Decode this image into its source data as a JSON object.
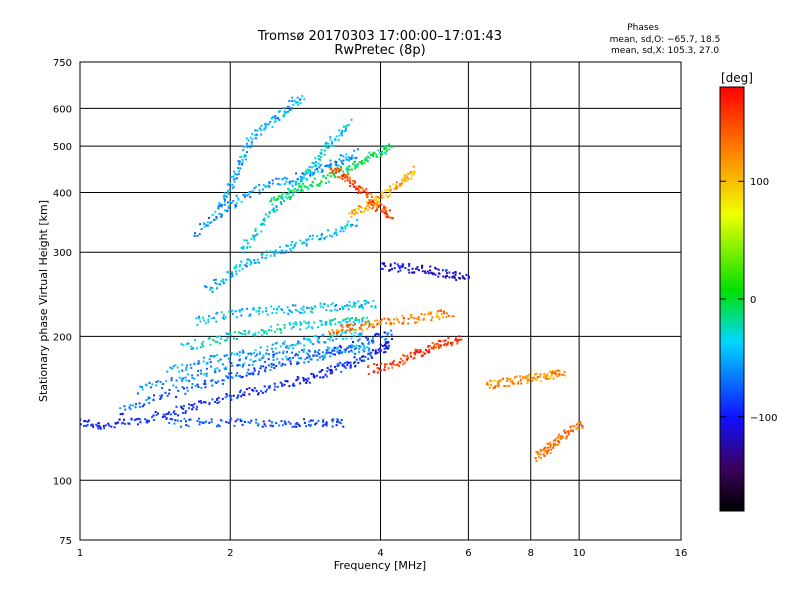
{
  "chart_data": {
    "type": "scatter",
    "title": "Tromsø 20170303 17:00:00–17:01:43",
    "subtitle": "RwPretec (8p)",
    "stats": {
      "heading": "Phases",
      "line_o": "mean, sd,O: −65.7, 18.5",
      "line_x": "mean, sd,X: 105.3, 27.0"
    },
    "xlabel": "Frequency [MHz]",
    "ylabel": "Stationary phase Virtual Height [km]",
    "x_scale": "log",
    "y_scale": "log",
    "xlim": [
      1,
      16
    ],
    "ylim": [
      75,
      750
    ],
    "x_ticks": [
      1,
      2,
      4,
      6,
      8,
      10,
      16
    ],
    "x_tick_labels": [
      "1",
      "2",
      "4",
      "6",
      "8",
      "10",
      "16"
    ],
    "y_ticks": [
      75,
      100,
      200,
      300,
      400,
      500,
      600,
      750
    ],
    "y_tick_labels": [
      "75",
      "100",
      "200",
      "300",
      "400",
      "500",
      "600",
      "750"
    ],
    "grid": true,
    "colorbar": {
      "label": "[deg]",
      "range": [
        -180,
        180
      ],
      "ticks": [
        100,
        0,
        -100
      ],
      "tick_labels": [
        "100",
        "0",
        "−100"
      ],
      "colormap": "rainbow (black → purple → blue → cyan → green → yellow → red)"
    },
    "traces": [
      {
        "x": [
          1.0,
          1.12,
          1.3,
          1.5,
          1.7,
          2.0,
          2.3,
          2.7,
          3.0,
          3.3,
          3.6,
          4.0,
          4.2
        ],
        "y": [
          132,
          130,
          133,
          138,
          143,
          150,
          155,
          160,
          166,
          172,
          178,
          187,
          195
        ],
        "phase": -95
      },
      {
        "x": [
          1.2,
          1.4,
          1.7,
          2.0,
          2.3,
          2.6,
          3.0,
          3.4,
          3.8,
          4.2
        ],
        "y": [
          139,
          148,
          157,
          164,
          170,
          176,
          182,
          189,
          196,
          203
        ],
        "phase": -75
      },
      {
        "x": [
          1.3,
          1.6,
          1.9,
          2.2,
          2.6,
          3.0,
          3.4,
          3.8
        ],
        "y": [
          155,
          162,
          172,
          178,
          183,
          185,
          187,
          189
        ],
        "phase": -60
      },
      {
        "x": [
          1.5,
          1.8,
          2.1,
          2.5,
          2.9,
          3.3,
          3.7
        ],
        "y": [
          170,
          178,
          184,
          190,
          196,
          200,
          205
        ],
        "phase": -50
      },
      {
        "x": [
          1.6,
          1.9,
          2.2,
          2.6,
          3.0,
          3.4,
          3.8
        ],
        "y": [
          190,
          197,
          203,
          209,
          212,
          214,
          216
        ],
        "phase": -30
      },
      {
        "x": [
          1.7,
          2.0,
          2.3,
          2.7,
          3.1,
          3.5,
          3.9
        ],
        "y": [
          215,
          222,
          226,
          228,
          230,
          232,
          234
        ],
        "phase": -40
      },
      {
        "x": [
          1.8,
          2.0,
          2.2,
          2.5,
          2.8,
          3.2,
          3.6
        ],
        "y": [
          250,
          270,
          288,
          300,
          315,
          330,
          345
        ],
        "phase": -45
      },
      {
        "x": [
          1.7,
          1.9,
          2.1,
          2.4,
          2.7,
          3.0,
          3.3,
          3.6
        ],
        "y": [
          330,
          360,
          390,
          415,
          430,
          445,
          465,
          485
        ],
        "phase": -55
      },
      {
        "x": [
          2.1,
          2.3,
          2.5,
          2.8,
          3.0,
          3.2,
          3.5
        ],
        "y": [
          300,
          340,
          380,
          430,
          470,
          510,
          560
        ],
        "phase": -35
      },
      {
        "x": [
          1.9,
          2.0,
          2.1,
          2.2,
          2.4,
          2.6,
          2.8
        ],
        "y": [
          370,
          410,
          460,
          520,
          560,
          600,
          640
        ],
        "phase": -50
      },
      {
        "x": [
          2.4,
          2.7,
          3.0,
          3.3,
          3.6,
          3.9,
          4.2
        ],
        "y": [
          380,
          400,
          420,
          440,
          460,
          480,
          500
        ],
        "phase": -10
      },
      {
        "x": [
          3.2,
          3.4,
          3.6,
          3.8,
          4.0,
          4.2
        ],
        "y": [
          450,
          430,
          410,
          390,
          370,
          355
        ],
        "phase": 150
      },
      {
        "x": [
          3.5,
          3.8,
          4.1,
          4.4,
          4.7
        ],
        "y": [
          360,
          375,
          395,
          420,
          450
        ],
        "phase": 110
      },
      {
        "x": [
          3.2,
          3.5,
          3.9,
          4.4,
          5.0,
          5.6
        ],
        "y": [
          205,
          208,
          212,
          216,
          220,
          225
        ],
        "phase": 125
      },
      {
        "x": [
          3.8,
          4.2,
          4.6,
          5.0,
          5.4,
          5.8
        ],
        "y": [
          170,
          175,
          182,
          188,
          194,
          198
        ],
        "phase": 160
      },
      {
        "x": [
          1.5,
          1.8,
          2.2,
          2.6,
          3.0,
          3.4
        ],
        "y": [
          132,
          132,
          132,
          132,
          132,
          132
        ],
        "phase": -80
      },
      {
        "x": [
          4.0,
          4.5,
          5.0,
          5.5,
          6.0
        ],
        "y": [
          280,
          278,
          275,
          270,
          265
        ],
        "phase": -110
      },
      {
        "x": [
          6.5,
          7.0,
          7.6,
          8.2,
          8.8,
          9.3
        ],
        "y": [
          158,
          160,
          162,
          164,
          166,
          168
        ],
        "phase": 120
      },
      {
        "x": [
          8.2,
          8.6,
          9.0,
          9.5,
          10.2
        ],
        "y": [
          112,
          115,
          120,
          126,
          132
        ],
        "phase": 130
      }
    ]
  }
}
